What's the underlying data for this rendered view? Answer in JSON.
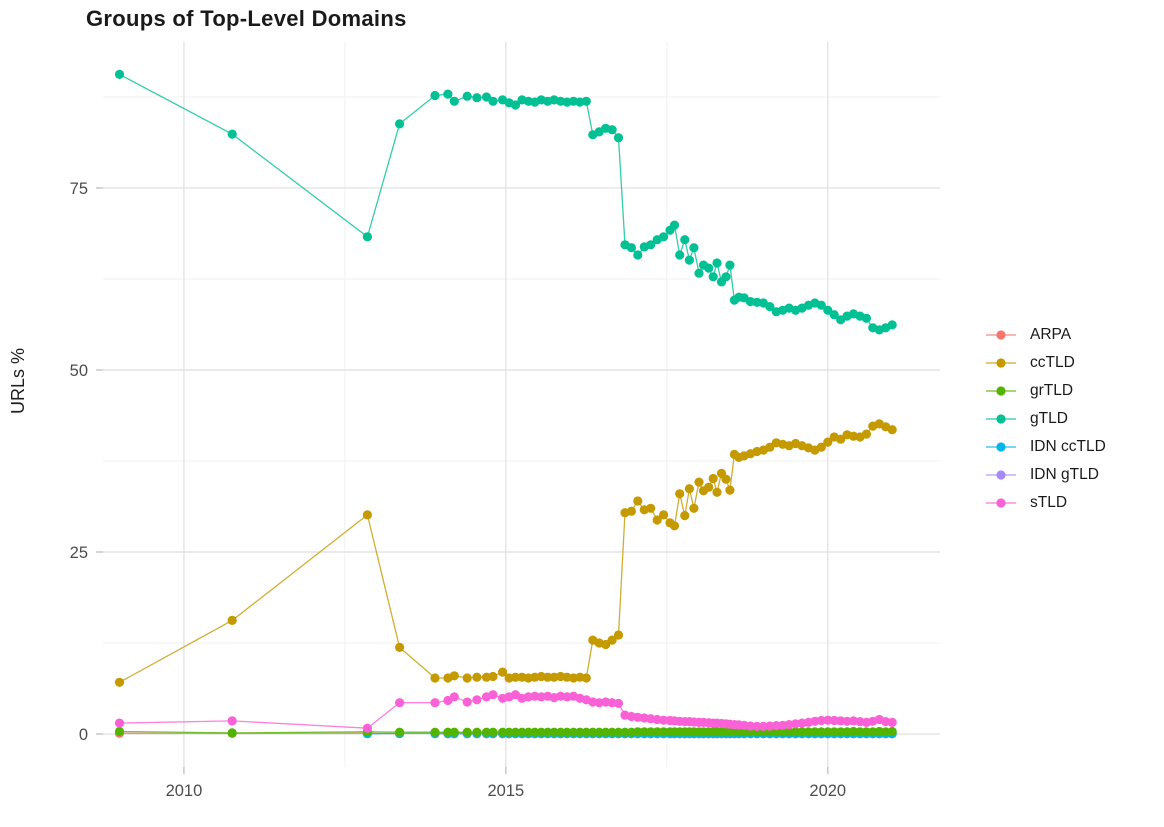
{
  "title": "Groups of Top-Level Domains",
  "chart_data": {
    "type": "line",
    "title": "Groups of Top-Level Domains",
    "xlabel": "",
    "ylabel": "URLs %",
    "grid": true,
    "legend_position": "right-center",
    "xlim": [
      2008.743,
      2021.743
    ],
    "ylim": [
      -4.53,
      95.05
    ],
    "x_ticks": [
      2010,
      2015,
      2020
    ],
    "x_tick_labels": [
      "2010",
      "2015",
      "2020"
    ],
    "x_minor_ticks": [
      2012.5,
      2017.5
    ],
    "y_ticks": [
      0,
      25,
      50,
      75
    ],
    "y_tick_labels": [
      "0",
      "25",
      "50",
      "75"
    ],
    "y_minor_ticks": [
      12.5,
      37.5,
      62.5,
      87.5
    ],
    "x": [
      2009.0,
      2010.75,
      2012.85,
      2013.35,
      2013.9,
      2014.1,
      2014.2,
      2014.4,
      2014.55,
      2014.7,
      2014.8,
      2014.95,
      2015.05,
      2015.15,
      2015.25,
      2015.35,
      2015.45,
      2015.55,
      2015.65,
      2015.75,
      2015.85,
      2015.95,
      2016.05,
      2016.15,
      2016.25,
      2016.35,
      2016.45,
      2016.55,
      2016.65,
      2016.75,
      2016.85,
      2016.95,
      2017.05,
      2017.15,
      2017.25,
      2017.35,
      2017.45,
      2017.55,
      2017.62,
      2017.7,
      2017.78,
      2017.85,
      2017.92,
      2018.0,
      2018.07,
      2018.15,
      2018.22,
      2018.28,
      2018.35,
      2018.42,
      2018.48,
      2018.55,
      2018.62,
      2018.7,
      2018.8,
      2018.9,
      2019.0,
      2019.1,
      2019.2,
      2019.3,
      2019.4,
      2019.5,
      2019.6,
      2019.7,
      2019.8,
      2019.9,
      2020.0,
      2020.1,
      2020.2,
      2020.3,
      2020.4,
      2020.5,
      2020.6,
      2020.7,
      2020.8,
      2020.9,
      2021.0
    ],
    "series": [
      {
        "name": "ARPA",
        "color": "#F8766D",
        "values": [
          0.1,
          0.08,
          0.1,
          0.05,
          null,
          null,
          null,
          null,
          null,
          null,
          null,
          null,
          null,
          null,
          null,
          null,
          null,
          null,
          null,
          null,
          null,
          null,
          null,
          null,
          null,
          null,
          null,
          null,
          null,
          null,
          null,
          null,
          null,
          null,
          null,
          null,
          null,
          null,
          null,
          null,
          null,
          null,
          null,
          null,
          null,
          null,
          null,
          null,
          null,
          null,
          null,
          null,
          null,
          null,
          null,
          null,
          null,
          null,
          null,
          null,
          null,
          null,
          null,
          null,
          null,
          null,
          null,
          null,
          null,
          null,
          null,
          null,
          null,
          null,
          null,
          null,
          null
        ]
      },
      {
        "name": "ccTLD",
        "color": "#C49A00",
        "values": [
          7.1,
          15.6,
          30.1,
          11.9,
          7.7,
          7.7,
          8.0,
          7.7,
          7.8,
          7.8,
          7.9,
          8.5,
          7.7,
          7.8,
          7.8,
          7.7,
          7.8,
          7.9,
          7.8,
          7.8,
          7.9,
          7.8,
          7.7,
          7.8,
          7.7,
          12.9,
          12.5,
          12.3,
          12.9,
          13.6,
          30.4,
          30.6,
          32.0,
          30.8,
          31.0,
          29.4,
          30.1,
          29.0,
          28.6,
          33.0,
          30.0,
          33.7,
          31.0,
          34.6,
          33.4,
          33.9,
          35.1,
          33.2,
          35.8,
          35.0,
          33.5,
          38.4,
          38.0,
          38.2,
          38.5,
          38.8,
          39.0,
          39.4,
          40.0,
          39.8,
          39.6,
          39.9,
          39.6,
          39.3,
          39.0,
          39.4,
          40.1,
          40.8,
          40.5,
          41.1,
          40.9,
          40.8,
          41.2,
          42.3,
          42.6,
          42.2,
          41.8
        ]
      },
      {
        "name": "grTLD",
        "color": "#53B400",
        "values": [
          0.35,
          0.15,
          0.3,
          0.25,
          0.25,
          0.25,
          0.25,
          0.25,
          0.25,
          0.25,
          0.25,
          0.25,
          0.25,
          0.25,
          0.25,
          0.25,
          0.25,
          0.25,
          0.25,
          0.25,
          0.25,
          0.25,
          0.25,
          0.25,
          0.25,
          0.25,
          0.25,
          0.25,
          0.25,
          0.25,
          0.25,
          0.25,
          0.3,
          0.3,
          0.3,
          0.3,
          0.3,
          0.3,
          0.3,
          0.3,
          0.3,
          0.3,
          0.3,
          0.3,
          0.3,
          0.3,
          0.3,
          0.3,
          0.3,
          0.3,
          0.3,
          0.3,
          0.3,
          0.3,
          0.3,
          0.3,
          0.3,
          0.3,
          0.3,
          0.3,
          0.3,
          0.3,
          0.3,
          0.3,
          0.3,
          0.3,
          0.3,
          0.3,
          0.3,
          0.3,
          0.35,
          0.3,
          0.3,
          0.3,
          0.35,
          0.3,
          0.35
        ]
      },
      {
        "name": "gTLD",
        "color": "#00C094",
        "values": [
          90.6,
          82.4,
          68.3,
          83.8,
          87.7,
          87.9,
          86.9,
          87.6,
          87.4,
          87.5,
          86.9,
          87.1,
          86.7,
          86.4,
          87.1,
          86.9,
          86.8,
          87.1,
          86.9,
          87.1,
          86.9,
          86.8,
          86.9,
          86.8,
          86.9,
          82.3,
          82.7,
          83.2,
          83.0,
          81.9,
          67.2,
          66.8,
          65.8,
          66.9,
          67.2,
          67.9,
          68.3,
          69.2,
          69.9,
          65.8,
          67.9,
          65.1,
          66.8,
          63.3,
          64.4,
          64.0,
          62.8,
          64.7,
          62.1,
          62.8,
          64.4,
          59.6,
          60.0,
          59.9,
          59.4,
          59.3,
          59.2,
          58.7,
          58.0,
          58.2,
          58.5,
          58.2,
          58.5,
          58.9,
          59.2,
          58.9,
          58.2,
          57.6,
          56.9,
          57.4,
          57.7,
          57.4,
          57.1,
          55.8,
          55.5,
          55.8,
          56.2
        ]
      },
      {
        "name": "IDN ccTLD",
        "color": "#00B6EB",
        "values": [
          null,
          null,
          0.05,
          0.08,
          0.1,
          0.1,
          0.1,
          0.1,
          0.1,
          0.1,
          0.1,
          0.1,
          0.08,
          0.08,
          0.08,
          0.08,
          0.08,
          0.08,
          0.08,
          0.08,
          0.08,
          0.08,
          0.08,
          0.08,
          0.08,
          0.08,
          0.08,
          0.08,
          0.08,
          0.08,
          0.08,
          0.08,
          0.08,
          0.08,
          0.08,
          0.08,
          0.08,
          0.08,
          0.08,
          0.08,
          0.08,
          0.08,
          0.08,
          0.08,
          0.08,
          0.08,
          0.08,
          0.08,
          0.08,
          0.08,
          0.08,
          0.08,
          0.08,
          0.08,
          0.08,
          0.08,
          0.08,
          0.08,
          0.08,
          0.08,
          0.08,
          0.08,
          0.08,
          0.08,
          0.08,
          0.08,
          0.08,
          0.08,
          0.08,
          0.08,
          0.08,
          0.08,
          0.08,
          0.08,
          0.08,
          0.08,
          0.08
        ]
      },
      {
        "name": "IDN gTLD",
        "color": "#A58AFF",
        "values": [
          null,
          null,
          null,
          null,
          0.02,
          0.02,
          0.02,
          0.02,
          0.02,
          0.02,
          0.02,
          0.02,
          0.02,
          0.02,
          0.02,
          0.02,
          0.02,
          0.02,
          0.02,
          0.02,
          0.02,
          0.02,
          0.02,
          0.02,
          0.02,
          0.02,
          0.02,
          0.02,
          0.02,
          0.02,
          0.02,
          0.02,
          0.02,
          0.02,
          0.02,
          0.02,
          0.02,
          0.02,
          0.02,
          0.02,
          0.02,
          0.02,
          0.02,
          0.02,
          0.02,
          0.02,
          0.02,
          0.02,
          0.02,
          0.02,
          0.02,
          0.02,
          0.02,
          0.02,
          0.02,
          0.02,
          0.02,
          0.02,
          0.02,
          0.02,
          0.02,
          0.02,
          0.02,
          0.02,
          0.02,
          0.02,
          0.02,
          0.02,
          0.02,
          0.02,
          0.02,
          0.02,
          0.02,
          0.02,
          0.02,
          0.02,
          0.02
        ]
      },
      {
        "name": "sTLD",
        "color": "#FB61D7",
        "values": [
          1.5,
          1.8,
          0.8,
          4.3,
          4.3,
          4.6,
          5.1,
          4.4,
          4.7,
          5.1,
          5.4,
          4.9,
          5.1,
          5.4,
          4.9,
          5.1,
          5.2,
          5.1,
          5.2,
          5.0,
          5.2,
          5.1,
          5.2,
          4.9,
          4.7,
          4.4,
          4.3,
          4.4,
          4.3,
          4.2,
          2.6,
          2.4,
          2.3,
          2.2,
          2.1,
          2.0,
          1.9,
          1.85,
          1.8,
          1.75,
          1.7,
          1.7,
          1.65,
          1.6,
          1.6,
          1.55,
          1.5,
          1.5,
          1.45,
          1.4,
          1.35,
          1.3,
          1.25,
          1.2,
          1.1,
          1.05,
          1.05,
          1.1,
          1.15,
          1.2,
          1.3,
          1.4,
          1.5,
          1.6,
          1.75,
          1.85,
          1.9,
          1.85,
          1.8,
          1.75,
          1.8,
          1.7,
          1.6,
          1.75,
          2.0,
          1.7,
          1.6
        ]
      }
    ]
  },
  "style": {
    "grid_major_color": "#e4e4e4",
    "grid_minor_color": "#f1f1f1",
    "tick_mark_color": "#c4c4c4",
    "tick_text_color": "#4d4d4d"
  }
}
